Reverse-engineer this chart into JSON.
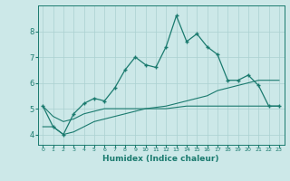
{
  "xlabel": "Humidex (Indice chaleur)",
  "x": [
    0,
    1,
    2,
    3,
    4,
    5,
    6,
    7,
    8,
    9,
    10,
    11,
    12,
    13,
    14,
    15,
    16,
    17,
    18,
    19,
    20,
    21,
    22,
    23
  ],
  "main_y": [
    5.1,
    4.3,
    4.0,
    4.8,
    5.2,
    5.4,
    5.3,
    5.8,
    6.5,
    7.0,
    6.7,
    6.6,
    7.4,
    8.6,
    7.6,
    7.9,
    7.4,
    7.1,
    6.1,
    6.1,
    6.3,
    5.9,
    5.1,
    5.1
  ],
  "line2_y": [
    5.1,
    4.7,
    4.5,
    4.6,
    4.8,
    4.9,
    5.0,
    5.0,
    5.0,
    5.0,
    5.0,
    5.0,
    5.0,
    5.05,
    5.1,
    5.1,
    5.1,
    5.1,
    5.1,
    5.1,
    5.1,
    5.1,
    5.1,
    5.1
  ],
  "line3_y": [
    4.3,
    4.3,
    4.0,
    4.1,
    4.3,
    4.5,
    4.6,
    4.7,
    4.8,
    4.9,
    5.0,
    5.05,
    5.1,
    5.2,
    5.3,
    5.4,
    5.5,
    5.7,
    5.8,
    5.9,
    6.0,
    6.1,
    6.1,
    6.1
  ],
  "bg_color": "#cce8e8",
  "grid_color": "#aad0d0",
  "line_color": "#1a7a6e",
  "ylim": [
    3.6,
    9.0
  ],
  "xlim": [
    -0.5,
    23.5
  ],
  "yticks": [
    4,
    5,
    6,
    7,
    8
  ]
}
